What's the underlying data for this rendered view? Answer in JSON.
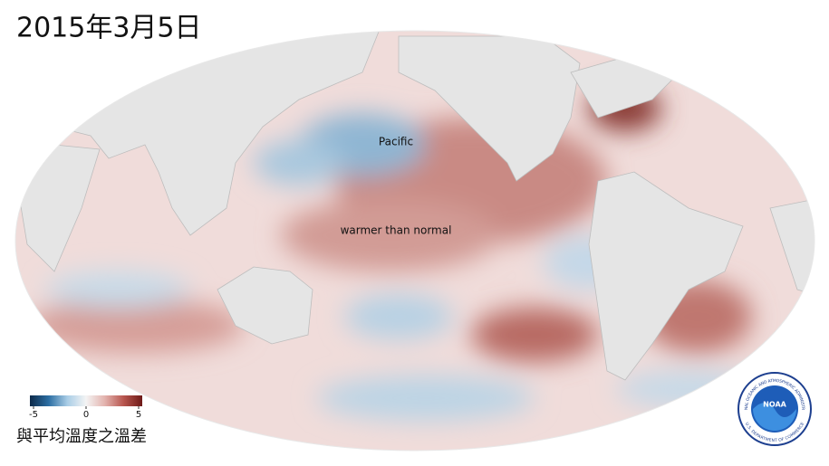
{
  "title": "2015年3月5日",
  "map": {
    "labels": [
      "Pacific",
      "warmer than normal"
    ]
  },
  "colorbar": {
    "range": [
      -5,
      5
    ],
    "ticks": [
      -5,
      0,
      5
    ],
    "colors": [
      "#0d2a4a",
      "#2c6ea3",
      "#a9cde6",
      "#f4f4f4",
      "#e3b3ae",
      "#b8564f",
      "#6e1a18"
    ]
  },
  "caption": "與平均溫度之溫差",
  "logo": {
    "text": "NOAA",
    "ring_top": "NATIONAL OCEANIC AND ATMOSPHERIC ADMINISTRATION",
    "ring_bottom": "U.S. DEPARTMENT OF COMMERCE"
  }
}
